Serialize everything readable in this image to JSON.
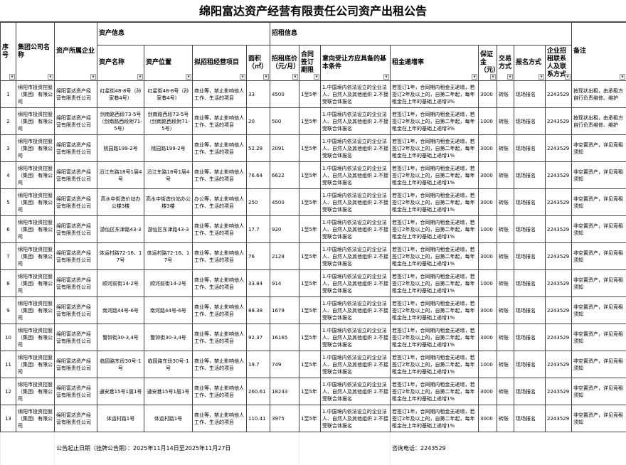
{
  "title": "绵阳富达资产经营有限责任公司资产出租公告",
  "headers": {
    "seq": "序号",
    "group": "集团公司名称",
    "owner": "资产所属企业",
    "asset_info": "资产信息",
    "lease_info": "招租信息",
    "asset_name": "资产名称",
    "asset_location": "资产位置",
    "business": "拟招租经营项目",
    "area": "面积（㎡）",
    "price": "招租底价（元/月）",
    "term": "合同签订期限",
    "conditions": "意向受让方应具备的基本条件",
    "increase": "租金递增率",
    "deposit": "保证金（元）",
    "trade": "交易方式",
    "signup": "报名方式",
    "contact": "企业招租联系人及联系方式",
    "remark": "备注"
  },
  "rows": [
    {
      "seq": "1",
      "group": "绵阳市投资控股（集团）有限公司",
      "owner": "绵阳富达资产经营有限责任公司",
      "name": "红星街48-8号（孙家巷4号）",
      "location": "红星街48-8号（孙家巷4号）",
      "business": "商业等，禁止影响他人工作、生活的项目",
      "area": "33",
      "price": "4500",
      "term": "1至5年",
      "conditions": "1.中国境内依法设立的企业法人、自然人及其他组织 2.不接受联合体报名",
      "increase": "若签订1年，合同期内租金无递增，若签订2年及以上的，自第二年起，每年租金在上年的基础上递增3%",
      "deposit": "3000",
      "trade": "转账",
      "signup": "现场报名",
      "contact": "2243529",
      "remark": "按现状出租，由承租方自行负责维修、维护"
    },
    {
      "seq": "2",
      "group": "绵阳市投资控股（集团）有限公司",
      "owner": "绵阳富达资产经营有限责任公司",
      "name": "剑南路西段73-5号（剑南路西段附71-5号）",
      "location": "剑南路西段73-5号（剑南路西段附71-5号）",
      "business": "商业等，禁止影响他人工作、生活的项目",
      "area": "20",
      "price": "500",
      "term": "1至5年",
      "conditions": "1.中国境内依法设立的企业法人、自然人及其他组织 2.不接受联合体报名",
      "increase": "若签订1年，合同期内租金无递增，若签订2年及以上的，自第二年起，每年租金在上年的基础上递增3%",
      "deposit": "1000",
      "trade": "转账",
      "signup": "现场报名",
      "contact": "2243529",
      "remark": "按现状出租，由承租方自行负责维修、维护"
    },
    {
      "seq": "3",
      "group": "绵阳市投资控股（集团）有限公司",
      "owner": "绵阳富达资产经营有限责任公司",
      "name": "桃园路199-2号",
      "location": "桃园路199-2号",
      "business": "商业等，禁止影响他人工作、生活的项目",
      "area": "52.28",
      "price": "2091",
      "term": "1至5年",
      "conditions": "1.中国境内依法设立的企业法人、自然人及其他组织 2.不接受联合体报名",
      "increase": "若签订1年，合同期内租金无递增，若签订2年及以上的，自第二年起，每年租金在上年的基础上递增1%",
      "deposit": "3000",
      "trade": "转账",
      "signup": "现场报名",
      "contact": "2243529",
      "remark": "非空置资产，详见竞租须知"
    },
    {
      "seq": "4",
      "group": "绵阳市投资控股（集团）有限公司",
      "owner": "绵阳富达资产经营有限责任公司",
      "name": "沿江东路18号1层4号",
      "location": "沿江东路18号1层4号",
      "business": "商业等，禁止影响他人工作、生活的项目",
      "area": "76.64",
      "price": "6622",
      "term": "1至5年",
      "conditions": "1.中国境内依法设立的企业法人、自然人及其他组织 2.不接受联合体报名",
      "increase": "若签订1年，合同期内租金无递增，若签订2年及以上的，自第二年起，每年租金在上年的基础上递增1%",
      "deposit": "3000",
      "trade": "转账",
      "signup": "现场报名",
      "contact": "2243529",
      "remark": "非空置资产，详见竞租须知"
    },
    {
      "seq": "5",
      "group": "绵阳市投资控股（集团）有限公司",
      "owner": "绵阳富达资产经营有限责任公司",
      "name": "高水中街造价站办公楼3楼",
      "location": "高水中街造价站办公楼3楼",
      "business": "办公等，禁止影响他人工作、生活的项目",
      "area": "250",
      "price": "4500",
      "term": "1至5年",
      "conditions": "1.中国境内依法设立的企业法人、自然人及其他组织 2.不接受联合体报名",
      "increase": "若签订1年，合同期内租金无递增，若签订2年及以上的，自第二年起，每年租金在上年的基础上递增1%",
      "deposit": "3000",
      "trade": "转账",
      "signup": "现场报名",
      "contact": "2243529",
      "remark": "非空置资产，详见竞租须知"
    },
    {
      "seq": "6",
      "group": "绵阳市投资控股（集团）有限公司",
      "owner": "绵阳富达资产经营有限责任公司",
      "name": "游仙区东津路43-3",
      "location": "游仙区东津路43-3",
      "business": "商业等，禁止影响他人工作、生活的项目",
      "area": "17.7",
      "price": "920",
      "term": "1至5年",
      "conditions": "1.中国境内依法设立的企业法人、自然人及其他组织 2.不接受联合体报名",
      "increase": "若签订1年，合同期内租金无递增，若签订2年及以上的，自第二年起，每年租金在上年的基础上递增1%",
      "deposit": "1000",
      "trade": "转账",
      "signup": "现场报名",
      "contact": "2243529",
      "remark": "非空置资产，详见竞租须知"
    },
    {
      "seq": "7",
      "group": "绵阳市投资控股（集团）有限公司",
      "owner": "绵阳富达资产经营有限责任公司",
      "name": "体运村路72-16、17号",
      "location": "体运村路72-16、17号",
      "business": "商业等，禁止影响他人工作、生活的项目",
      "area": "76",
      "price": "2128",
      "term": "1至5年",
      "conditions": "1.中国境内依法设立的企业法人、自然人及其他组织 2.不接受联合体报名",
      "increase": "若签订1年，合同期内租金无递增，若签订2年及以上的，自第二年起，每年租金在上年的基础上递增1%",
      "deposit": "3000",
      "trade": "转账",
      "signup": "现场报名",
      "contact": "2243529",
      "remark": "非空置资产，详见竞租须知"
    },
    {
      "seq": "8",
      "group": "绵阳市投资控股（集团）有限公司",
      "owner": "绵阳富达资产经营有限责任公司",
      "name": "顺河前街14-2号",
      "location": "顺河前街14-2号",
      "business": "商业等，禁止影响他人工作、生活的项目",
      "area": "33.84",
      "price": "914",
      "term": "1至5年",
      "conditions": "1.中国境内依法设立的企业法人、自然人及其他组织 2.不接受联合体报名",
      "increase": "若签订1年，合同期内租金无递增，若签订2年及以上的，自第二年起，每年租金在上年的基础上递增1%",
      "deposit": "1000",
      "trade": "转账",
      "signup": "现场报名",
      "contact": "2243529",
      "remark": "非空置资产，详见竞租须知"
    },
    {
      "seq": "9",
      "group": "绵阳市投资控股（集团）有限公司",
      "owner": "绵阳富达资产经营有限责任公司",
      "name": "南河路44号-6号",
      "location": "南河路44号-6号",
      "business": "商业等，禁止影响他人工作、生活的项目",
      "area": "88.38",
      "price": "1679",
      "term": "1至5年",
      "conditions": "1.中国境内依法设立的企业法人、自然人及其他组织 2.不接受联合体报名",
      "increase": "若签订1年，合同期内租金无递增，若签订2年及以上的，自第二年起，每年租金在上年的基础上递增1%",
      "deposit": "3000",
      "trade": "转账",
      "signup": "现场报名",
      "contact": "2243529",
      "remark": "非空置资产，详见竞租须知"
    },
    {
      "seq": "10",
      "group": "绵阳市投资控股（集团）有限公司",
      "owner": "绵阳富达资产经营有限责任公司",
      "name": "警钟街30-3,4号",
      "location": "警钟街30-3,4号",
      "business": "商业等，禁止影响他人工作、生活的项目",
      "area": "92.37",
      "price": "16165",
      "term": "1至5年",
      "conditions": "1.中国境内依法设立的企业法人、自然人及其他组织 2.不接受联合体报名",
      "increase": "若签订1年，合同期内租金无递增，若签订2年及以上的，自第二年起，每年租金在上年的基础上递增1%",
      "deposit": "3000",
      "trade": "转账",
      "signup": "现场报名",
      "contact": "2243529",
      "remark": "非空置资产，详见竞租须知"
    },
    {
      "seq": "11",
      "group": "绵阳市投资控股（集团）有限公司",
      "owner": "绵阳富达资产经营有限责任公司",
      "name": "临园路东段30号-1号",
      "location": "临园路东段30号-1号",
      "business": "商业等，禁止影响他人工作、生活的项目",
      "area": "19.7",
      "price": "749",
      "term": "1至5年",
      "conditions": "1.中国境内依法设立的企业法人、自然人及其他组织 2.不接受联合体报名",
      "increase": "若签订1年，合同期内租金无递增，若签订2年及以上的，自第二年起，每年租金在上年的基础上递增1%",
      "deposit": "1000",
      "trade": "转账",
      "signup": "现场报名",
      "contact": "2243529",
      "remark": "非空置资产，详见竞租须知"
    },
    {
      "seq": "12",
      "group": "绵阳市投资控股（集团）有限公司",
      "owner": "绵阳富达资产经营有限责任公司",
      "name": "通安巷15号1层1号",
      "location": "通安巷15号1层1号",
      "business": "商业等，禁止影响他人工作、生活的项目",
      "area": "260.61",
      "price": "18243",
      "term": "1至5年",
      "conditions": "1.中国境内依法设立的企业法人、自然人及其他组织 2.不接受联合体报名",
      "increase": "若签订1年，合同期内租金无递增，若签订2年及以上的，自第二年起，每年租金在上年的基础上递增1%",
      "deposit": "3000",
      "trade": "转账",
      "signup": "现场报名",
      "contact": "2243529",
      "remark": "非空置资产，详见竞租须知"
    },
    {
      "seq": "13",
      "group": "绵阳市投资控股（集团）有限公司",
      "owner": "绵阳富达资产经营有限责任公司",
      "name": "体运村路1号",
      "location": "体运村路1号",
      "business": "商业等，禁止影响他人工作、生活的项目",
      "area": "110.41",
      "price": "3975",
      "term": "1至5年",
      "conditions": "1.中国境内依法设立的企业法人、自然人及其他组织 2.不接受联合体报名",
      "increase": "若签订1年，合同期内租金无递增，若签订2年及以上的，自第二年起，每年租金在上年的基础上递增1%",
      "deposit": "3000",
      "trade": "转账",
      "signup": "现场报名",
      "contact": "2243529",
      "remark": "非空置资产，详见竞租须知"
    }
  ],
  "footer": {
    "period": "公告起止日期（挂牌公告期）：2025年11月14日至2025年11月27日",
    "phone": "咨询电话：2243529"
  }
}
